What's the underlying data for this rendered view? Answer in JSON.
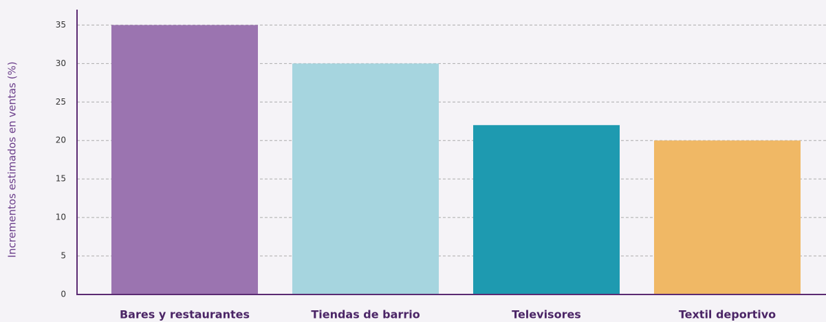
{
  "chart_data": {
    "type": "bar",
    "ylabel": "Incrementos estimados en ventas (%)",
    "categories": [
      "Bares y restaurantes",
      "Tiendas de barrio",
      "Televisores",
      "Textil deportivo"
    ],
    "values": [
      35,
      30,
      22,
      20
    ],
    "colors": [
      "#9b74b0",
      "#a6d5df",
      "#1e9ab0",
      "#f0b865"
    ],
    "ylim": [
      0,
      37
    ],
    "yticks": [
      0,
      5,
      10,
      15,
      20,
      25,
      30,
      35
    ],
    "grid": true
  }
}
